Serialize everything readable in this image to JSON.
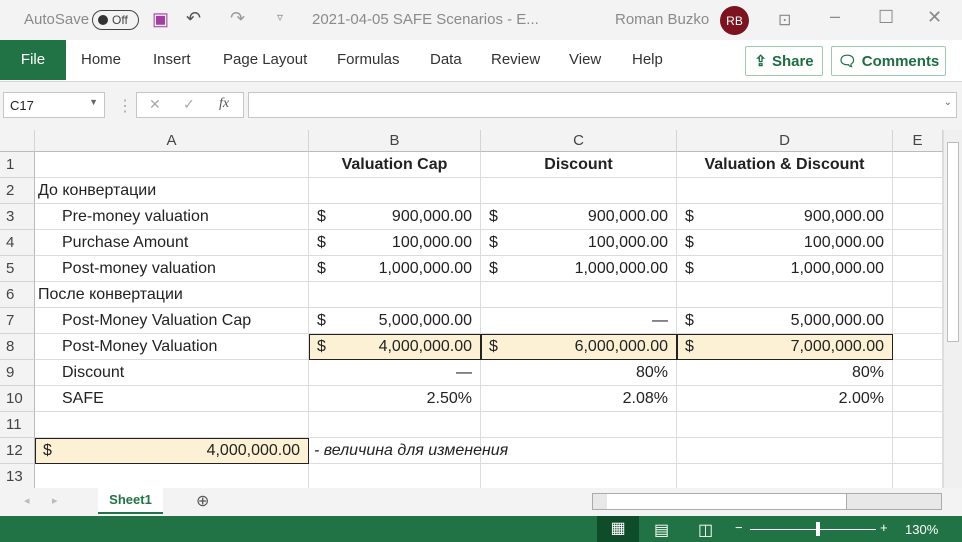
{
  "titlebar": {
    "autosave": "AutoSave",
    "autosave_state": "Off",
    "title": "2021-04-05 SAFE Scenarios  -  E...",
    "user": "Roman Buzko",
    "initials": "RB"
  },
  "ribbon": {
    "tabs": [
      "File",
      "Home",
      "Insert",
      "Page Layout",
      "Formulas",
      "Data",
      "Review",
      "View",
      "Help"
    ],
    "share": "Share",
    "comments": "Comments"
  },
  "formula_bar": {
    "name_box": "C17",
    "fx": "fx",
    "value": ""
  },
  "columns": [
    "A",
    "B",
    "C",
    "D",
    "E"
  ],
  "rows": [
    {
      "n": "1",
      "a": "",
      "b": "Valuation Cap",
      "c": "Discount",
      "d": "Valuation & Discount"
    },
    {
      "n": "2",
      "a": "До конвертации",
      "b": "",
      "c": "",
      "d": ""
    },
    {
      "n": "3",
      "a": "Pre-money valuation",
      "b": "900,000.00",
      "c": "900,000.00",
      "d": "900,000.00"
    },
    {
      "n": "4",
      "a": "Purchase Amount",
      "b": "100,000.00",
      "c": "100,000.00",
      "d": "100,000.00"
    },
    {
      "n": "5",
      "a": "Post-money valuation",
      "b": "1,000,000.00",
      "c": "1,000,000.00",
      "d": "1,000,000.00"
    },
    {
      "n": "6",
      "a": "После конвертации",
      "b": "",
      "c": "",
      "d": ""
    },
    {
      "n": "7",
      "a": "Post-Money Valuation Cap",
      "b": "5,000,000.00",
      "c": "—",
      "d": "5,000,000.00"
    },
    {
      "n": "8",
      "a": "Post-Money Valuation",
      "b": "4,000,000.00",
      "c": "6,000,000.00",
      "d": "7,000,000.00"
    },
    {
      "n": "9",
      "a": "Discount",
      "b": "—",
      "c": "80%",
      "d": "80%"
    },
    {
      "n": "10",
      "a": "SAFE",
      "b": "2.50%",
      "c": "2.08%",
      "d": "2.00%"
    },
    {
      "n": "11",
      "a": "",
      "b": "",
      "c": "",
      "d": ""
    },
    {
      "n": "12",
      "a": "4,000,000.00",
      "b": "- величина для изменения",
      "c": "",
      "d": ""
    },
    {
      "n": "13",
      "a": "",
      "b": "",
      "c": "",
      "d": ""
    }
  ],
  "currency_symbol": "$",
  "highlight_color": "#fdf1d5",
  "sheet": {
    "tab": "Sheet1"
  },
  "status": {
    "zoom": "130%",
    "zoom_level": 130
  }
}
